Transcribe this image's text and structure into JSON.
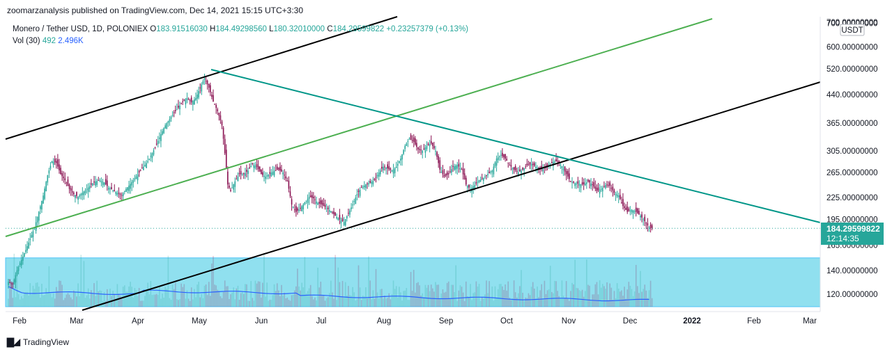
{
  "header": {
    "published": "zoomarzanalysis published on TradingView.com, Dec 14, 2021 15:15 UTC+3:30"
  },
  "legend": {
    "symbol": "Monero / Tether USD, 1D, POLONIEX",
    "open_label": "O",
    "open": "183.91516030",
    "high_label": "H",
    "high": "184.49298560",
    "low_label": "L",
    "low": "180.32010000",
    "close_label": "C",
    "close": "184.29599822",
    "change": "+0.23257379 (+0.13%)",
    "vol_label": "Vol (30)",
    "vol_value": "492",
    "vol_ma": "2.496K"
  },
  "price_axis": {
    "currency": "USDT",
    "ticks": [
      "700.00000000",
      "600.00000000",
      "520.00000000",
      "440.00000000",
      "365.00000000",
      "305.00000000",
      "265.00000000",
      "225.00000000",
      "195.00000000",
      "165.00000000",
      "140.00000000",
      "120.00000000"
    ],
    "last_price": "184.29599822",
    "countdown": "12:14:35"
  },
  "time_axis": {
    "ticks": [
      "Feb",
      "Mar",
      "Apr",
      "May",
      "Jun",
      "Jul",
      "Aug",
      "Sep",
      "Oct",
      "Nov",
      "Dec",
      "2022",
      "Feb",
      "Mar"
    ]
  },
  "colors": {
    "up": "#26a69a",
    "down": "#880e4f",
    "channel_black": "#000000",
    "channel_green": "#4caf50",
    "trend_teal": "#009688",
    "zone_fill": "#90e0ef",
    "volume_ma": "#2962ff",
    "price_label_bg": "#26a69a"
  },
  "chart_data": {
    "type": "candlestick",
    "scale": "log",
    "y_ticks": [
      700,
      600,
      520,
      440,
      365,
      305,
      265,
      225,
      195,
      165,
      140,
      120
    ],
    "x_ticks": [
      "Feb",
      "Mar",
      "Apr",
      "May",
      "Jun",
      "Jul",
      "Aug",
      "Sep",
      "Oct",
      "Nov",
      "Dec",
      "2022",
      "Feb",
      "Mar"
    ],
    "close_path": [
      [
        0,
        130
      ],
      [
        3,
        128
      ],
      [
        6,
        140
      ],
      [
        9,
        150
      ],
      [
        12,
        160
      ],
      [
        15,
        172
      ],
      [
        18,
        185
      ],
      [
        21,
        205
      ],
      [
        24,
        228
      ],
      [
        27,
        260
      ],
      [
        30,
        285
      ],
      [
        33,
        282
      ],
      [
        36,
        262
      ],
      [
        39,
        252
      ],
      [
        42,
        238
      ],
      [
        45,
        230
      ],
      [
        48,
        226
      ],
      [
        51,
        232
      ],
      [
        54,
        238
      ],
      [
        57,
        245
      ],
      [
        60,
        250
      ],
      [
        63,
        252
      ],
      [
        66,
        248
      ],
      [
        69,
        240
      ],
      [
        72,
        236
      ],
      [
        75,
        232
      ],
      [
        78,
        228
      ],
      [
        81,
        238
      ],
      [
        84,
        246
      ],
      [
        87,
        255
      ],
      [
        90,
        265
      ],
      [
        93,
        275
      ],
      [
        96,
        285
      ],
      [
        99,
        300
      ],
      [
        102,
        318
      ],
      [
        105,
        340
      ],
      [
        108,
        360
      ],
      [
        111,
        375
      ],
      [
        114,
        390
      ],
      [
        117,
        404
      ],
      [
        120,
        420
      ],
      [
        123,
        430
      ],
      [
        126,
        418
      ],
      [
        129,
        430
      ],
      [
        132,
        460
      ],
      [
        135,
        490
      ],
      [
        138,
        460
      ],
      [
        141,
        420
      ],
      [
        144,
        395
      ],
      [
        147,
        360
      ],
      [
        149,
        300
      ],
      [
        151,
        245
      ],
      [
        153,
        235
      ],
      [
        156,
        250
      ],
      [
        159,
        262
      ],
      [
        162,
        262
      ],
      [
        165,
        268
      ],
      [
        168,
        280
      ],
      [
        171,
        275
      ],
      [
        174,
        262
      ],
      [
        177,
        258
      ],
      [
        180,
        263
      ],
      [
        183,
        268
      ],
      [
        186,
        270
      ],
      [
        189,
        265
      ],
      [
        192,
        250
      ],
      [
        195,
        215
      ],
      [
        198,
        205
      ],
      [
        201,
        210
      ],
      [
        204,
        218
      ],
      [
        207,
        226
      ],
      [
        210,
        224
      ],
      [
        213,
        217
      ],
      [
        216,
        215
      ],
      [
        219,
        210
      ],
      [
        222,
        206
      ],
      [
        225,
        200
      ],
      [
        228,
        195
      ],
      [
        231,
        192
      ],
      [
        234,
        203
      ],
      [
        237,
        215
      ],
      [
        240,
        230
      ],
      [
        243,
        240
      ],
      [
        246,
        245
      ],
      [
        249,
        248
      ],
      [
        252,
        252
      ],
      [
        255,
        265
      ],
      [
        258,
        275
      ],
      [
        261,
        272
      ],
      [
        264,
        268
      ],
      [
        267,
        275
      ],
      [
        270,
        290
      ],
      [
        273,
        315
      ],
      [
        276,
        330
      ],
      [
        279,
        323
      ],
      [
        282,
        308
      ],
      [
        285,
        305
      ],
      [
        288,
        315
      ],
      [
        291,
        320
      ],
      [
        294,
        305
      ],
      [
        297,
        270
      ],
      [
        300,
        258
      ],
      [
        303,
        262
      ],
      [
        306,
        275
      ],
      [
        309,
        278
      ],
      [
        312,
        270
      ],
      [
        315,
        245
      ],
      [
        318,
        238
      ],
      [
        321,
        244
      ],
      [
        324,
        252
      ],
      [
        327,
        256
      ],
      [
        330,
        262
      ],
      [
        333,
        268
      ],
      [
        336,
        290
      ],
      [
        339,
        297
      ],
      [
        342,
        290
      ],
      [
        345,
        278
      ],
      [
        348,
        270
      ],
      [
        351,
        265
      ],
      [
        354,
        270
      ],
      [
        357,
        278
      ],
      [
        360,
        280
      ],
      [
        363,
        275
      ],
      [
        366,
        270
      ],
      [
        369,
        272
      ],
      [
        372,
        277
      ],
      [
        375,
        284
      ],
      [
        378,
        285
      ],
      [
        381,
        276
      ],
      [
        384,
        262
      ],
      [
        387,
        250
      ],
      [
        390,
        247
      ],
      [
        393,
        246
      ],
      [
        396,
        245
      ],
      [
        399,
        250
      ],
      [
        402,
        245
      ],
      [
        405,
        235
      ],
      [
        408,
        238
      ],
      [
        411,
        244
      ],
      [
        414,
        243
      ],
      [
        417,
        232
      ],
      [
        420,
        228
      ],
      [
        423,
        213
      ],
      [
        426,
        205
      ],
      [
        429,
        208
      ],
      [
        432,
        205
      ],
      [
        435,
        200
      ],
      [
        438,
        193
      ],
      [
        441,
        185
      ],
      [
        443,
        184.3
      ]
    ],
    "volume_ma_level": "low, gently declining",
    "annotations": [
      {
        "type": "ascending-channel",
        "color": "black"
      },
      {
        "type": "ascending-trendline",
        "color": "green"
      },
      {
        "type": "descending-trendline",
        "color": "teal"
      },
      {
        "type": "support-zone",
        "color": "cyan",
        "range": [
          110,
          152
        ]
      }
    ]
  }
}
